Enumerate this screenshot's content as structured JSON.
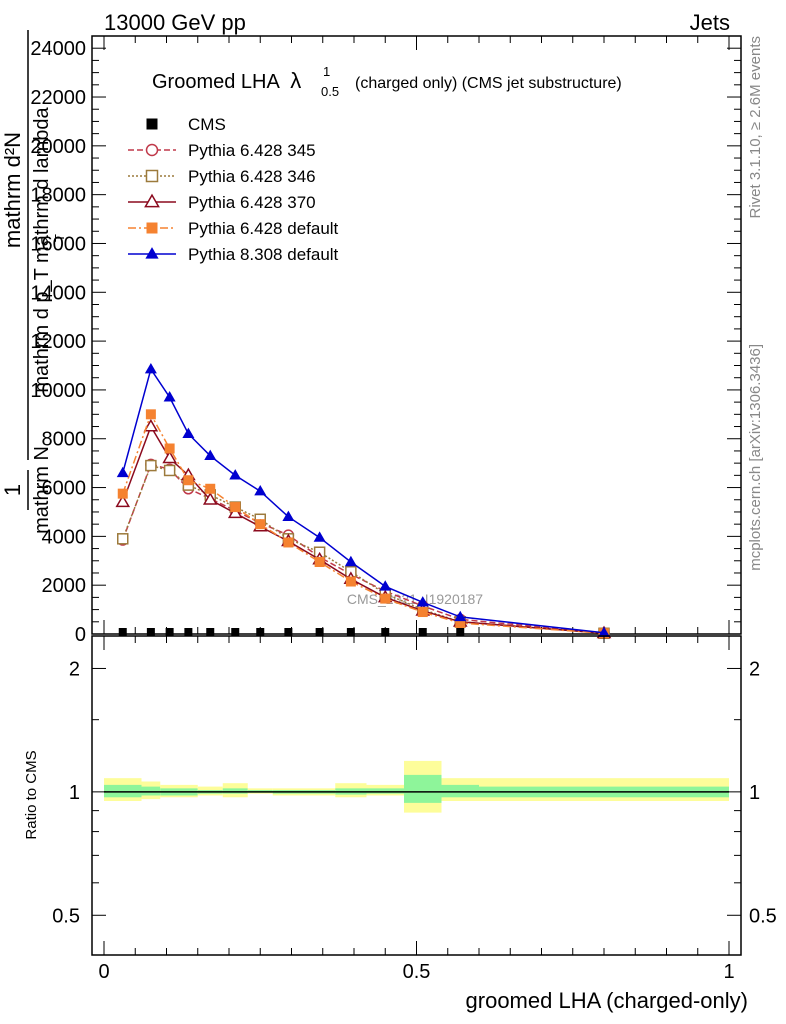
{
  "header": {
    "left": "13000 GeV pp",
    "right": "Jets"
  },
  "side_labels": {
    "rivet": "Rivet 3.1.10, ≥ 2.6M events",
    "mcplots": "mcplots.cern.ch [arXiv:1306.3436]"
  },
  "watermark": "CMS_2021_I1920187",
  "chart_data": [
    {
      "type": "line",
      "panel": "main",
      "title_main": "Groomed LHA",
      "title_lambda": "λ",
      "title_sup": "1",
      "title_sub": "0.5",
      "title_rest": "(charged only) (CMS jet substructure)",
      "ylabel_numerator": "mathrm d²N",
      "ylabel_denominator": "mathrm d p_T mathrm d lambda",
      "ylabel_prefix_num": "1",
      "ylabel_prefix_den": "mathrm N",
      "ylabel_sub": "T",
      "ylim": [
        0,
        24500
      ],
      "yticks": [
        0,
        2000,
        4000,
        6000,
        8000,
        10000,
        12000,
        14000,
        16000,
        18000,
        20000,
        22000,
        24000
      ],
      "ytick_labels": [
        "0",
        "2000",
        "4000",
        "6000",
        "8000",
        "10000",
        "12000",
        "14000",
        "16000",
        "18000",
        "20000",
        "22000",
        "24000"
      ],
      "xlim": [
        0,
        1
      ],
      "x": [
        0.03,
        0.075,
        0.105,
        0.135,
        0.17,
        0.21,
        0.25,
        0.295,
        0.345,
        0.395,
        0.45,
        0.51,
        0.57,
        0.8
      ],
      "series": [
        {
          "name": "CMS",
          "color": "#000000",
          "marker": "square-filled",
          "dash": "none",
          "values": [
            0,
            0,
            0,
            0,
            0,
            0,
            0,
            0,
            0,
            0,
            0,
            0,
            0,
            null
          ]
        },
        {
          "name": "Pythia 6.428 345",
          "color": "#c0394a",
          "marker": "circle-open",
          "dash": "6,3",
          "values": [
            3850,
            6950,
            6750,
            5950,
            5550,
            5050,
            4550,
            4050,
            3150,
            2450,
            1750,
            1150,
            600,
            40
          ]
        },
        {
          "name": "Pythia 6.428 346",
          "color": "#9c7a3c",
          "marker": "square-open",
          "dash": "2,2",
          "values": [
            3900,
            6900,
            6700,
            6100,
            5700,
            5200,
            4700,
            3900,
            3350,
            2550,
            1650,
            1000,
            500,
            30
          ]
        },
        {
          "name": "Pythia 6.428 370",
          "color": "#8b0a1e",
          "marker": "triangle-open",
          "dash": "none",
          "values": [
            5400,
            8500,
            7200,
            6500,
            5500,
            4950,
            4400,
            3800,
            3050,
            2250,
            1500,
            950,
            500,
            30
          ]
        },
        {
          "name": "Pythia 6.428 default",
          "color": "#f58230",
          "marker": "square-filled",
          "dash": "8,3,2,3",
          "values": [
            5750,
            9000,
            7600,
            6300,
            5950,
            5200,
            4500,
            3750,
            2950,
            2150,
            1450,
            900,
            450,
            30
          ]
        },
        {
          "name": "Pythia 8.308 default",
          "color": "#0000d0",
          "marker": "triangle-filled",
          "dash": "none",
          "values": [
            6600,
            10850,
            9700,
            8200,
            7300,
            6500,
            5850,
            4800,
            3950,
            2950,
            1950,
            1300,
            700,
            50
          ]
        }
      ]
    },
    {
      "type": "area",
      "panel": "ratio",
      "ylabel": "Ratio to CMS",
      "xlabel": "groomed LHA (charged-only)",
      "ylim": [
        0.4,
        2.4
      ],
      "log_scale_y": true,
      "yticks": [
        0.5,
        1,
        2
      ],
      "ytick_labels": [
        "0.5",
        "1",
        "2"
      ],
      "xticks": [
        0,
        0.5,
        1
      ],
      "xtick_labels": [
        "0",
        "0.5",
        "1"
      ],
      "reference": 1,
      "bins": [
        0,
        0.06,
        0.09,
        0.12,
        0.15,
        0.19,
        0.23,
        0.27,
        0.32,
        0.37,
        0.42,
        0.48,
        0.54,
        0.6,
        1.0
      ],
      "band_total": [
        [
          0.95,
          1.08
        ],
        [
          0.96,
          1.06
        ],
        [
          0.97,
          1.04
        ],
        [
          0.97,
          1.04
        ],
        [
          0.98,
          1.03
        ],
        [
          0.97,
          1.05
        ],
        [
          0.99,
          1.02
        ],
        [
          0.98,
          1.02
        ],
        [
          0.98,
          1.02
        ],
        [
          0.97,
          1.05
        ],
        [
          0.98,
          1.04
        ],
        [
          0.89,
          1.19
        ],
        [
          0.95,
          1.08
        ],
        [
          0.95,
          1.08
        ]
      ],
      "band_stat": [
        [
          0.97,
          1.04
        ],
        [
          0.98,
          1.03
        ],
        [
          0.98,
          1.02
        ],
        [
          0.98,
          1.02
        ],
        [
          0.99,
          1.01
        ],
        [
          0.99,
          1.02
        ],
        [
          0.995,
          1.01
        ],
        [
          0.99,
          1.01
        ],
        [
          0.99,
          1.01
        ],
        [
          0.985,
          1.02
        ],
        [
          0.99,
          1.02
        ],
        [
          0.94,
          1.1
        ],
        [
          0.97,
          1.04
        ],
        [
          0.97,
          1.03
        ]
      ],
      "colors": {
        "band_total": "#fdfd9a",
        "band_stat": "#8ef59a"
      }
    }
  ]
}
